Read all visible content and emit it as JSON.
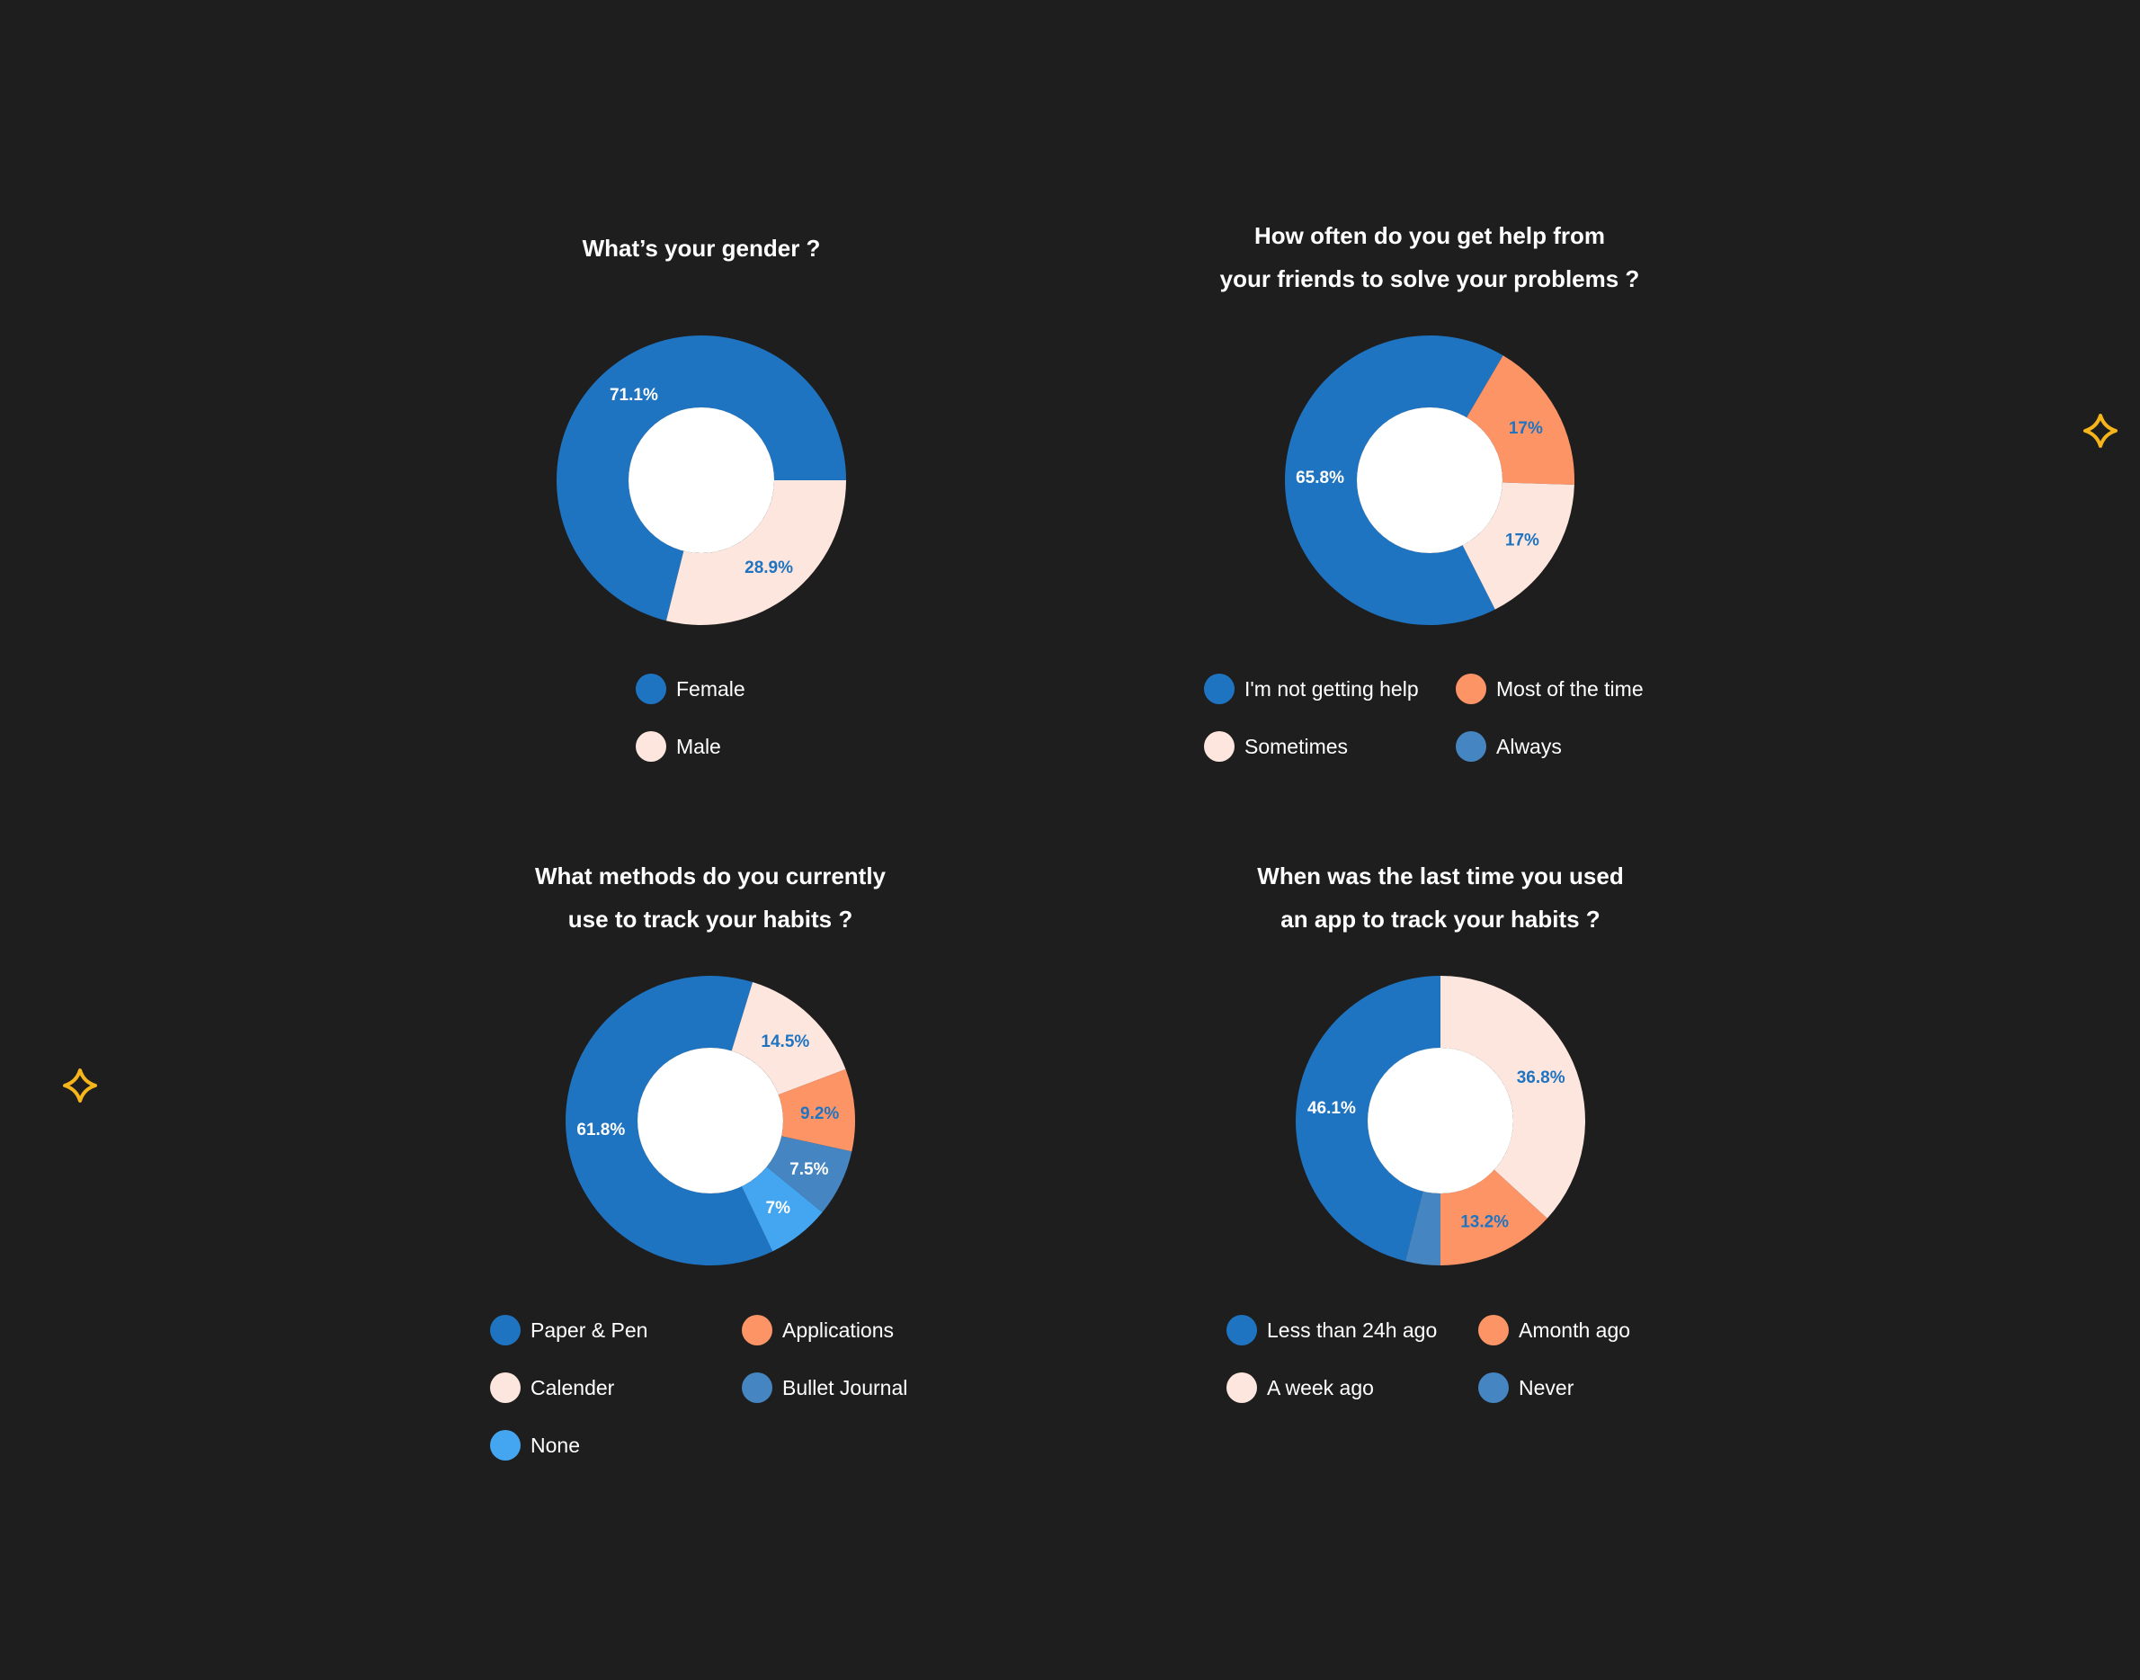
{
  "colors": {
    "background": "#1e1e1e",
    "sparkle": "#f6b51b",
    "title_text": "#ffffff",
    "legend_text": "#ffffff"
  },
  "decorations": [
    {
      "icon": "sparkle-icon"
    },
    {
      "icon": "sparkle-icon"
    }
  ],
  "chart_data": [
    {
      "type": "pie",
      "donut": true,
      "title": "What’s your gender ?",
      "legend_columns": 1,
      "slices": [
        {
          "label": "Female",
          "value": 71.1,
          "display": "71.1%",
          "color": "#1f74c1",
          "text_color": "#ffffff"
        },
        {
          "label": "Male",
          "value": 28.9,
          "display": "28.9%",
          "color": "#fde6dd",
          "text_color": "#1f74c1"
        }
      ]
    },
    {
      "type": "pie",
      "donut": true,
      "title": "How often do you get help from your friends to solve your problems ?",
      "title_lines": [
        "How often do you get help from",
        "your friends to solve your problems ?"
      ],
      "legend_columns": 2,
      "slices": [
        {
          "label": "I'm not getting help",
          "value": 65.8,
          "display": "65.8%",
          "color": "#1f74c1",
          "text_color": "#ffffff"
        },
        {
          "label": "Most of the time",
          "value": 17,
          "display": "17%",
          "color": "#fd9466",
          "text_color": "#1f74c1"
        },
        {
          "label": "Sometimes",
          "value": 17,
          "display": "17%",
          "color": "#fde6dd",
          "text_color": "#1f74c1"
        },
        {
          "label": "Always",
          "value": 0,
          "display": "",
          "color": "#4585c1",
          "text_color": "#ffffff"
        }
      ]
    },
    {
      "type": "pie",
      "donut": true,
      "title": "What methods do you currently use to track your habits ?",
      "title_lines": [
        "What methods do you currently",
        "use to track your habits ?"
      ],
      "legend_columns": 2,
      "slices": [
        {
          "label": "Paper & Pen",
          "value": 61.8,
          "display": "61.8%",
          "color": "#1f74c1",
          "text_color": "#ffffff"
        },
        {
          "label": "Calender",
          "value": 14.5,
          "display": "14.5%",
          "color": "#fde6dd",
          "text_color": "#1f74c1"
        },
        {
          "label": "Applications",
          "value": 9.2,
          "display": "9.2%",
          "color": "#fd9466",
          "text_color": "#1f74c1"
        },
        {
          "label": "Bullet Journal",
          "value": 7.5,
          "display": "7.5%",
          "color": "#4585c1",
          "text_color": "#ffffff"
        },
        {
          "label": "None",
          "value": 7,
          "display": "7%",
          "color": "#44a6f0",
          "text_color": "#ffffff"
        }
      ],
      "legend_order": [
        0,
        2,
        1,
        3,
        4
      ]
    },
    {
      "type": "pie",
      "donut": true,
      "title": "When was the last time you used an app to track your habits ?",
      "title_lines": [
        "When was the last time you used",
        "an app to track your habits ?"
      ],
      "legend_columns": 2,
      "slices": [
        {
          "label": "A week ago",
          "value": 36.8,
          "display": "36.8%",
          "color": "#fde6dd",
          "text_color": "#1f74c1"
        },
        {
          "label": "Amonth ago",
          "value": 13.2,
          "display": "13.2%",
          "color": "#fd9466",
          "text_color": "#1f74c1"
        },
        {
          "label": "Never",
          "value": 3.9,
          "display": "",
          "color": "#4585c1",
          "text_color": "#ffffff"
        },
        {
          "label": "Less than 24h ago",
          "value": 46.1,
          "display": "46.1%",
          "color": "#1f74c1",
          "text_color": "#ffffff"
        }
      ],
      "legend_order": [
        3,
        1,
        0,
        2
      ]
    }
  ]
}
